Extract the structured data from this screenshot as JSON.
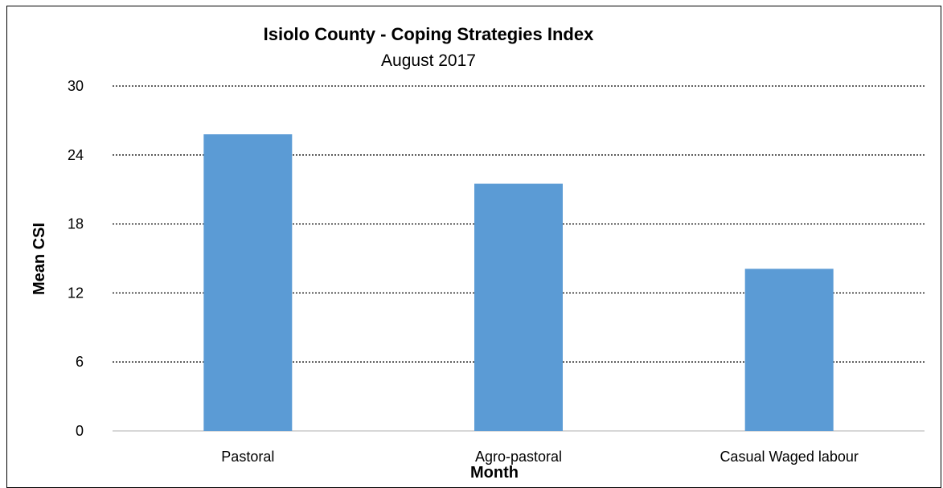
{
  "chart_data": {
    "type": "bar",
    "title": "Isiolo County - Coping Strategies Index",
    "subtitle": "August 2017",
    "xlabel": "Month",
    "ylabel": "Mean CSI",
    "categories": [
      "Pastoral",
      "Agro-pastoral",
      "Casual Waged labour"
    ],
    "values": [
      25.8,
      21.5,
      14.1
    ],
    "ylim": [
      0,
      30
    ],
    "yticks": [
      "0",
      "6",
      "12",
      "18",
      "24",
      "30"
    ],
    "grid": true,
    "grid_style": "dotted",
    "legend": "none",
    "bar_color": "#5b9bd5"
  }
}
